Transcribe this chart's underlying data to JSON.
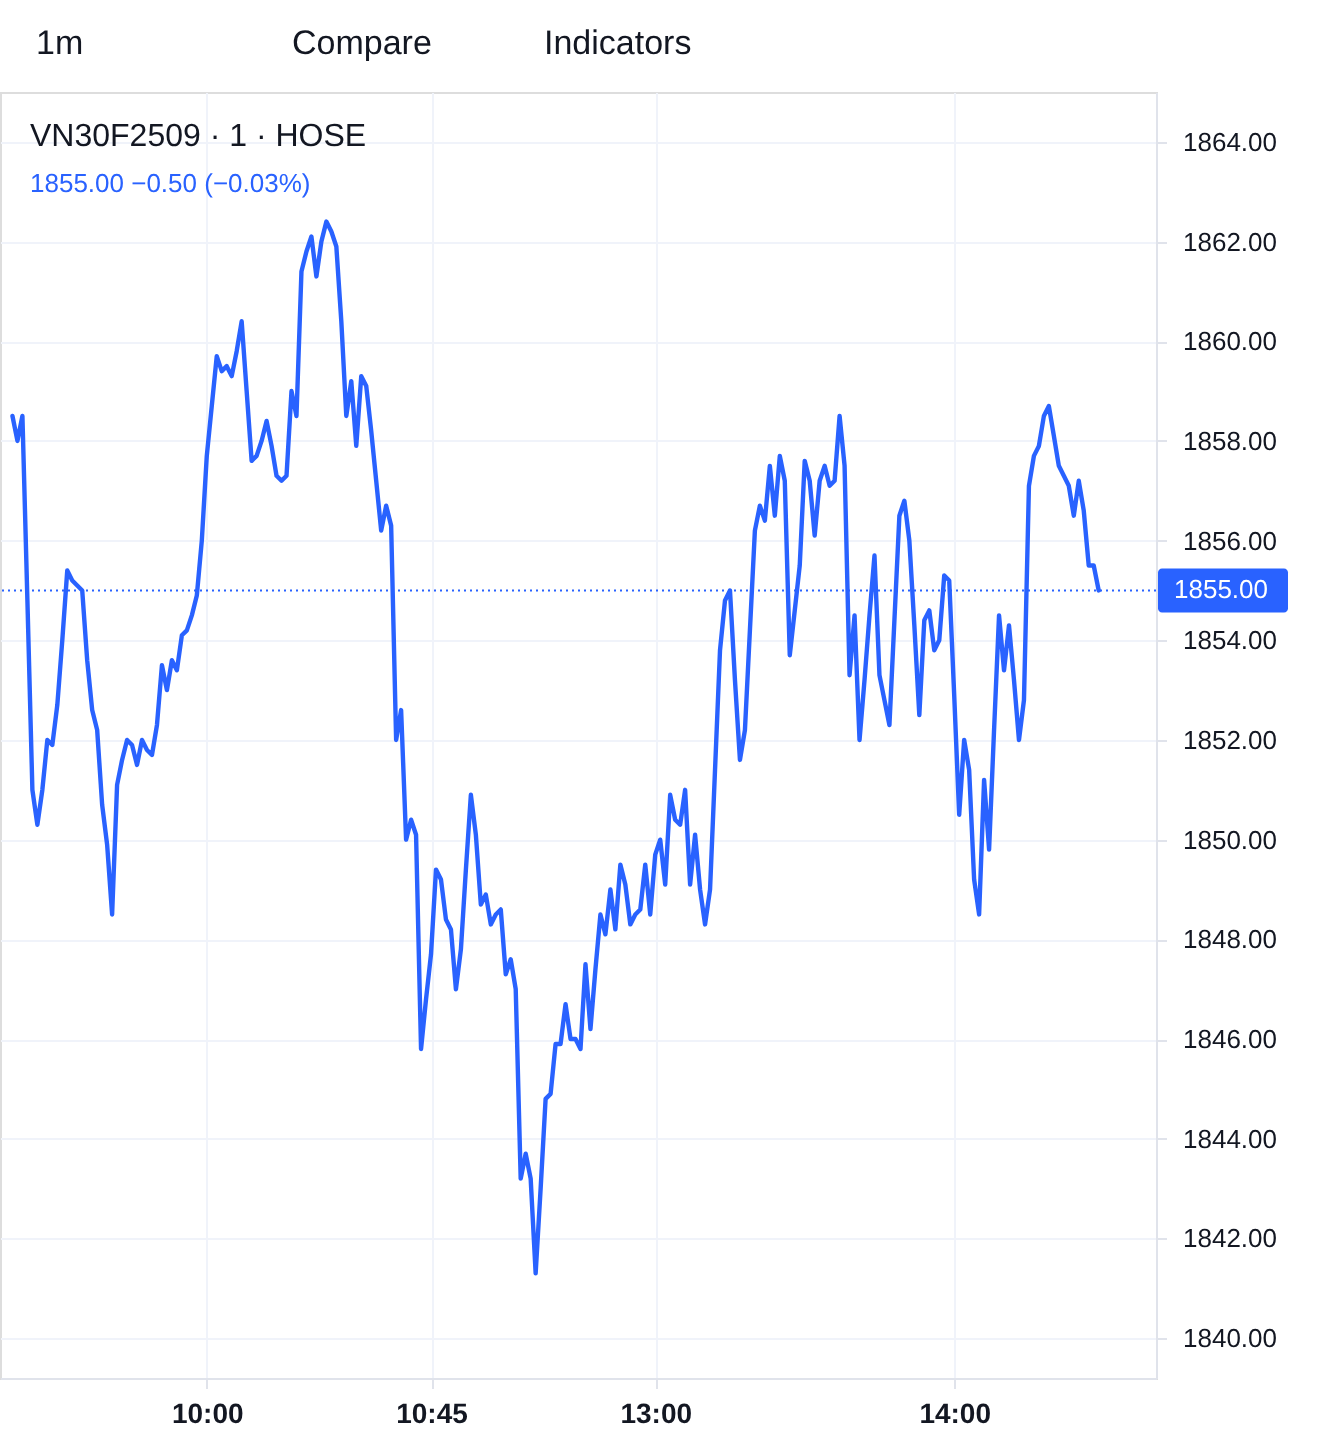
{
  "chart_data": {
    "type": "line",
    "title": "VN30F2509 · 1 · HOSE",
    "subtitle": "1855.00 −0.50 (−0.03%)",
    "annotations": [
      "1m",
      "Compare",
      "Indicators"
    ],
    "categories": [
      null,
      null,
      null,
      null,
      null,
      null,
      null,
      null,
      null,
      null,
      null,
      null,
      null,
      null,
      null,
      null,
      null,
      null,
      null,
      null,
      null,
      null,
      null,
      null,
      null,
      null,
      null,
      null,
      null,
      null,
      null,
      null,
      null,
      null,
      null,
      null,
      null,
      null,
      null,
      null,
      null,
      "10:00",
      null,
      null,
      null,
      null,
      null,
      null,
      null,
      null,
      null,
      null,
      null,
      null,
      null,
      null,
      null,
      null,
      null,
      null,
      null,
      null,
      null,
      null,
      null,
      null,
      null,
      null,
      null,
      null,
      null,
      null,
      null,
      null,
      null,
      null,
      null,
      null,
      null,
      null,
      null,
      null,
      null,
      null,
      null,
      null,
      "10:45",
      null,
      null,
      null,
      null,
      null,
      null,
      null,
      null,
      null,
      null,
      null,
      null,
      null,
      null,
      null,
      null,
      null,
      null,
      null,
      null,
      null,
      null,
      null,
      null,
      null,
      null,
      null,
      null,
      null,
      null,
      null,
      null,
      null,
      null,
      null,
      null,
      null,
      null,
      null,
      null,
      null,
      null,
      null,
      null,
      "13:00",
      null,
      null,
      null,
      null,
      null,
      null,
      null,
      null,
      null,
      null,
      null,
      null,
      null,
      null,
      null,
      null,
      null,
      null,
      null,
      null,
      null,
      null,
      null,
      null,
      null,
      null,
      null,
      null,
      null,
      null,
      null,
      null,
      null,
      null,
      null,
      null,
      null,
      null,
      null,
      null,
      null,
      null,
      null,
      null,
      null,
      null,
      null,
      null,
      null,
      null,
      null,
      null,
      null,
      null,
      null,
      null,
      null,
      null,
      null,
      "14:00",
      null,
      null,
      null,
      null,
      null,
      null,
      null,
      null,
      null,
      null,
      null,
      null,
      null,
      null,
      null,
      null,
      null,
      null,
      null,
      null,
      null,
      null,
      null,
      null,
      null,
      null,
      null,
      null,
      null,
      null,
      null,
      null,
      null,
      null,
      null,
      null,
      null,
      null,
      null,
      null
    ],
    "series": [
      {
        "color": "#2962ff",
        "values": [
          null,
          null,
          1858.5,
          1858.0,
          1858.5,
          1854.8,
          1851.0,
          1850.3,
          1851.0,
          1852.0,
          1851.9,
          1852.7,
          1854.0,
          1855.4,
          1855.2,
          1855.1,
          1855.0,
          1853.6,
          1852.6,
          1852.2,
          1850.7,
          1849.9,
          1848.5,
          1851.1,
          1851.6,
          1852.0,
          1851.9,
          1851.5,
          1852.0,
          1851.8,
          1851.7,
          1852.3,
          1853.5,
          1853.0,
          1853.6,
          1853.4,
          1854.1,
          1854.2,
          1854.5,
          1854.9,
          1856.0,
          1857.7,
          1858.7,
          1859.7,
          1859.4,
          1859.5,
          1859.3,
          1859.8,
          1860.4,
          1859.0,
          1857.6,
          1857.7,
          1858.0,
          1858.4,
          1857.9,
          1857.3,
          1857.2,
          1857.3,
          1859.0,
          1858.5,
          1861.4,
          1861.8,
          1862.1,
          1861.3,
          1862.0,
          1862.4,
          1862.2,
          1861.9,
          1860.4,
          1858.5,
          1859.2,
          1857.9,
          1859.3,
          1859.1,
          1858.2,
          1857.2,
          1856.2,
          1856.7,
          1856.3,
          1852.0,
          1852.6,
          1850.0,
          1850.4,
          1850.1,
          1845.8,
          1846.8,
          1847.7,
          1849.4,
          1849.2,
          1848.4,
          1848.2,
          1847.0,
          1847.8,
          1849.4,
          1850.9,
          1850.1,
          1848.7,
          1848.9,
          1848.3,
          1848.5,
          1848.6,
          1847.3,
          1847.6,
          1847.0,
          1843.2,
          1843.7,
          1843.2,
          1841.3,
          1843.0,
          1844.8,
          1844.9,
          1845.9,
          1845.9,
          1846.7,
          1846.0,
          1846.0,
          1845.8,
          1847.5,
          1846.2,
          1847.4,
          1848.5,
          1848.1,
          1849.0,
          1848.2,
          1849.5,
          1849.1,
          1848.3,
          1848.5,
          1848.6,
          1849.5,
          1848.5,
          1849.7,
          1850.0,
          1849.1,
          1850.9,
          1850.4,
          1850.3,
          1851.0,
          1849.1,
          1850.1,
          1849.0,
          1848.3,
          1849.0,
          1851.4,
          1853.8,
          1854.8,
          1855.0,
          1853.2,
          1851.6,
          1852.2,
          1854.2,
          1856.2,
          1856.7,
          1856.4,
          1857.5,
          1856.5,
          1857.7,
          1857.2,
          1853.7,
          1854.6,
          1855.5,
          1857.6,
          1857.2,
          1856.1,
          1857.2,
          1857.5,
          1857.1,
          1857.2,
          1858.5,
          1857.5,
          1853.3,
          1854.5,
          1852.0,
          1853.2,
          1854.5,
          1855.7,
          1853.3,
          1852.8,
          1852.3,
          1854.4,
          1856.5,
          1856.8,
          1856.0,
          1854.3,
          1852.5,
          1854.4,
          1854.6,
          1853.8,
          1854.0,
          1855.3,
          1855.2,
          1852.9,
          1850.5,
          1852.0,
          1851.4,
          1849.2,
          1848.5,
          1851.2,
          1849.8,
          1852.2,
          1854.5,
          1853.4,
          1854.3,
          1853.2,
          1852.0,
          1852.8,
          1857.1,
          1857.7,
          1857.9,
          1858.5,
          1858.7,
          1858.1,
          1857.5,
          1857.3,
          1857.1,
          1856.5,
          1857.2,
          1856.6,
          1855.5,
          1855.5,
          1855.0,
          null,
          null,
          null,
          null,
          null,
          null,
          null,
          null,
          null,
          null,
          null
        ]
      }
    ],
    "ylim": [
      1839.2,
      1865
    ],
    "yticks": [
      {
        "value": 1840,
        "label": "1840.00"
      },
      {
        "value": 1842,
        "label": "1842.00"
      },
      {
        "value": 1844,
        "label": "1844.00"
      },
      {
        "value": 1846,
        "label": "1846.00"
      },
      {
        "value": 1848,
        "label": "1848.00"
      },
      {
        "value": 1850,
        "label": "1850.00"
      },
      {
        "value": 1852,
        "label": "1852.00"
      },
      {
        "value": 1854,
        "label": "1854.00"
      },
      {
        "value": 1856,
        "label": "1856.00"
      },
      {
        "value": 1858,
        "label": "1858.00"
      },
      {
        "value": 1860,
        "label": "1860.00"
      },
      {
        "value": 1862,
        "label": "1862.00"
      },
      {
        "value": 1864,
        "label": "1864.00"
      }
    ],
    "ref_lines": [
      {
        "axis": "y",
        "value": 1855,
        "label": "1855.00",
        "color": "#2962ff",
        "line_style": "dotted"
      }
    ],
    "grid": true,
    "marker": "none",
    "line_style": "solid"
  }
}
